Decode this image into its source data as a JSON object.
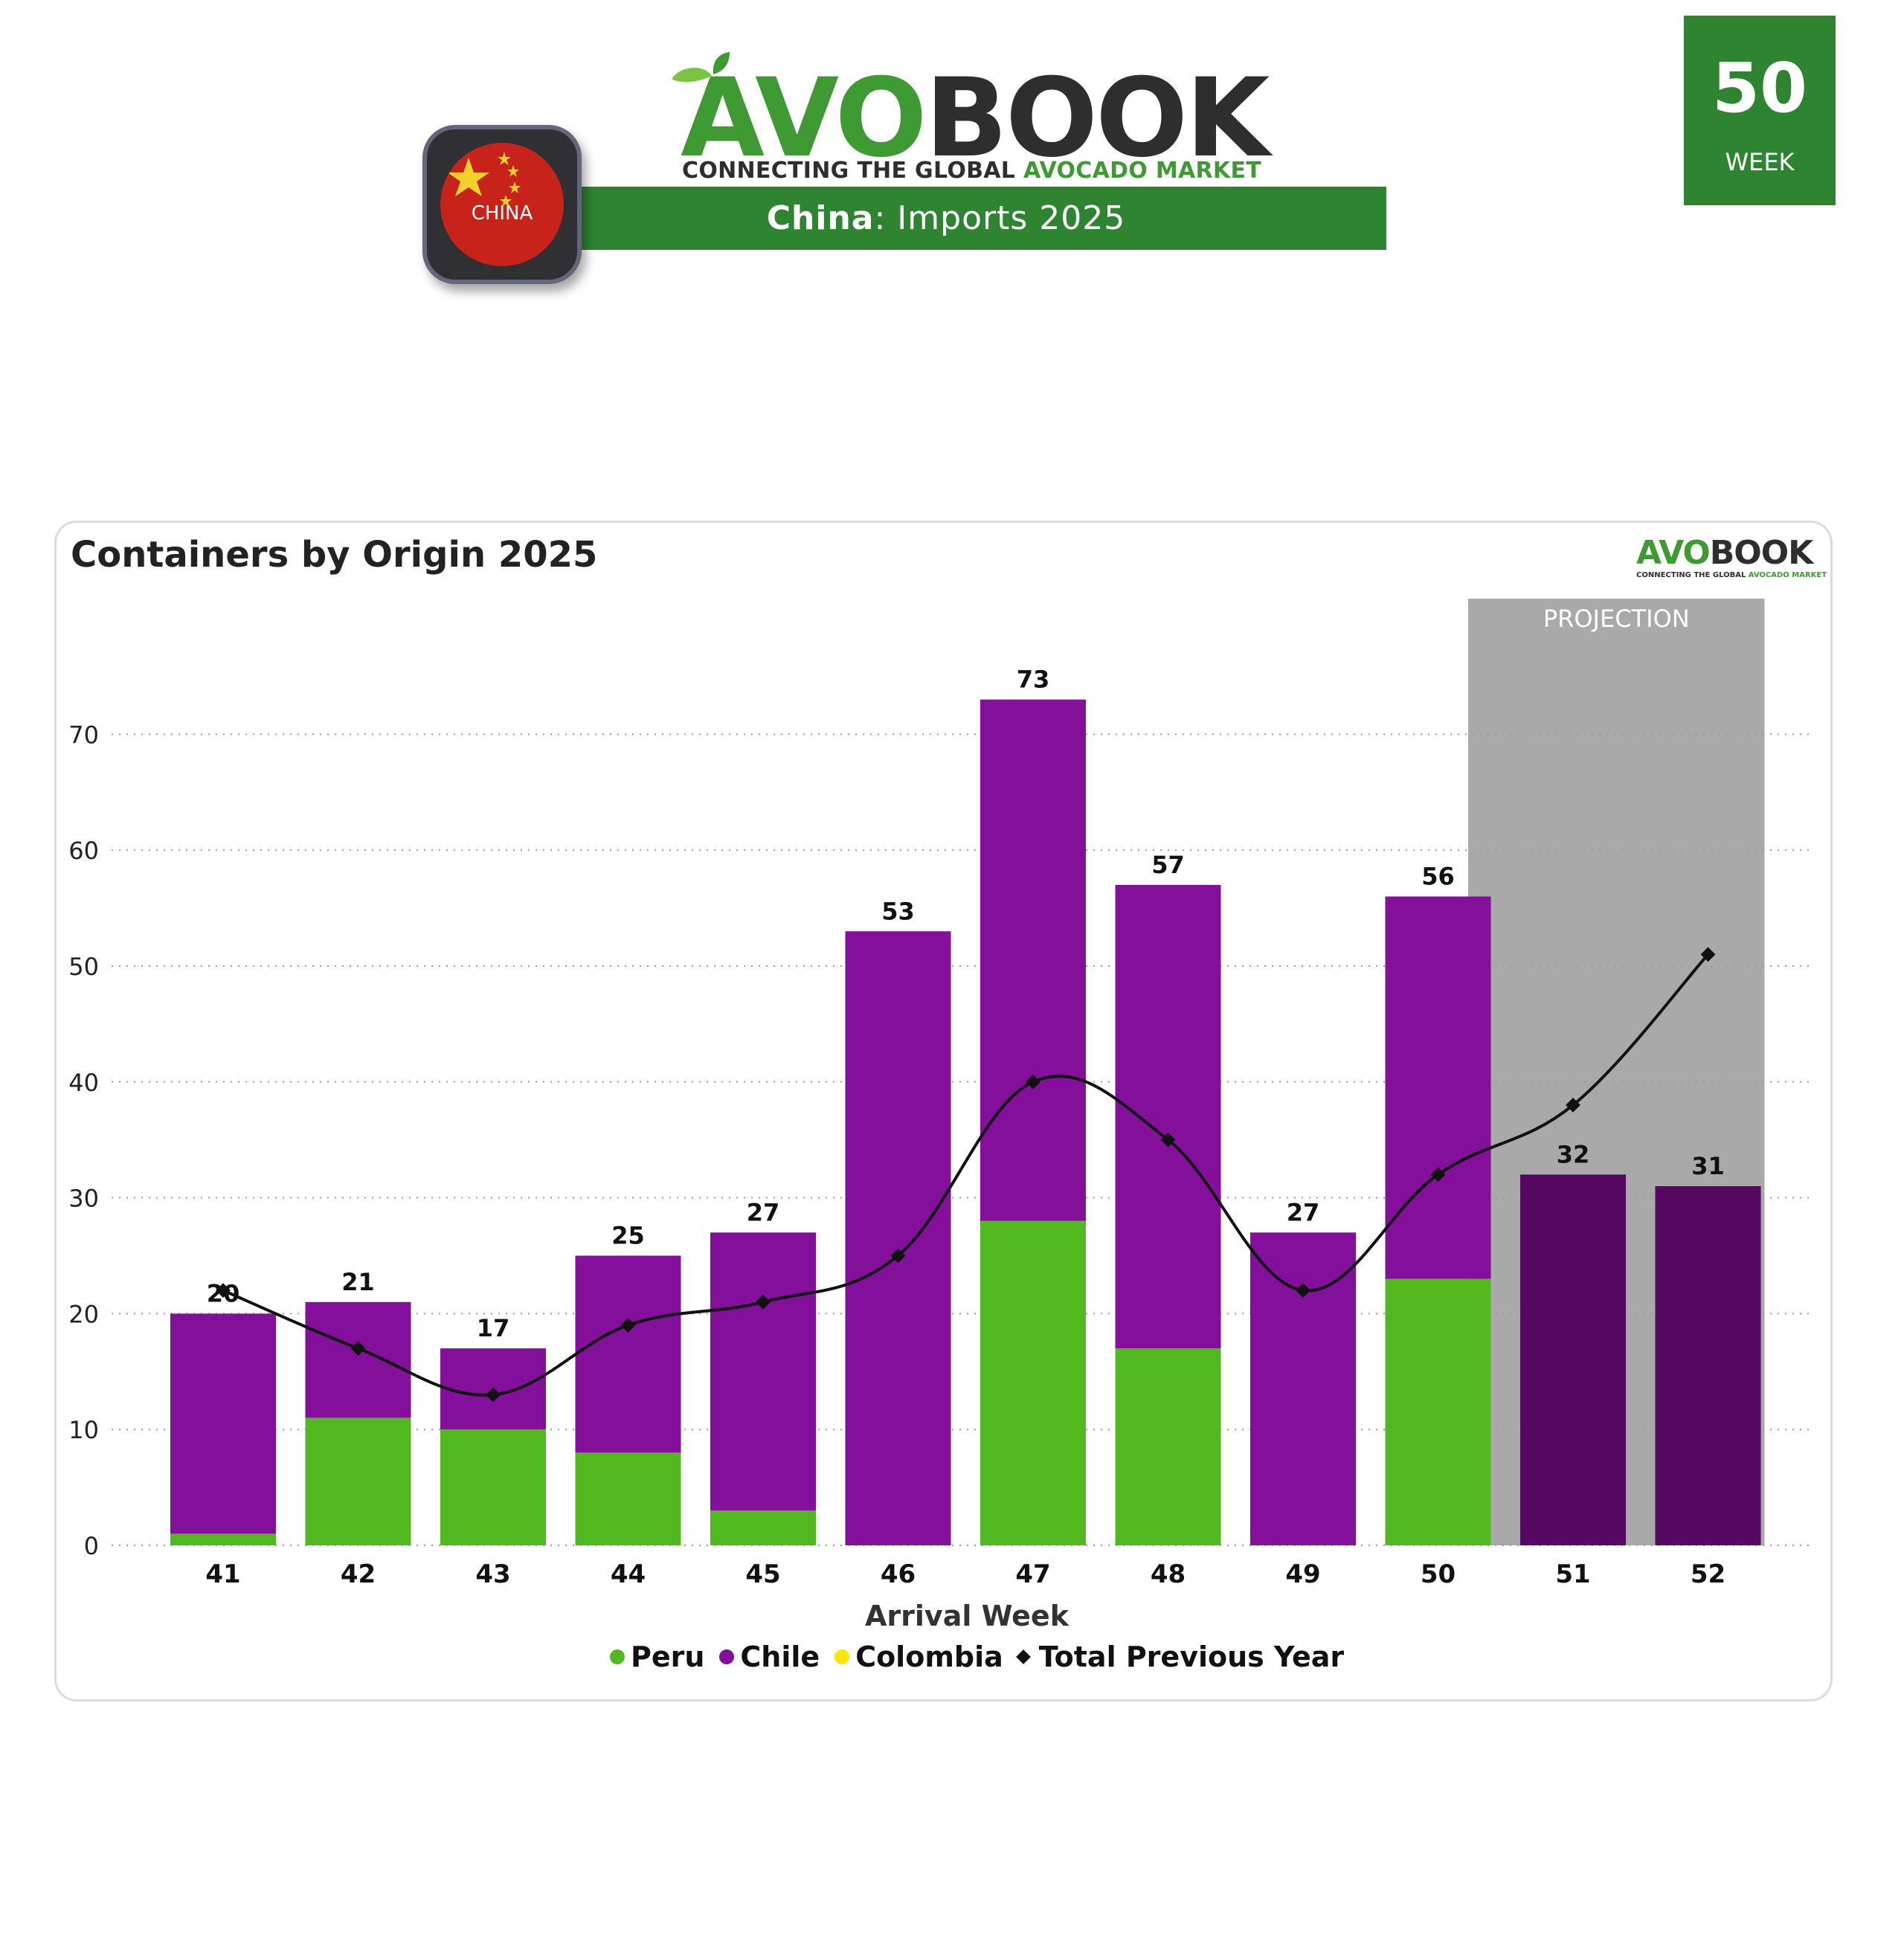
{
  "brand": {
    "name_part1": "AVO",
    "name_part2": "BOOK",
    "tagline_part1": "CONNECTING THE GLOBAL ",
    "tagline_part2": "AVOCADO MARKET",
    "green": "#3f9a34",
    "dark": "#2e2e2e"
  },
  "header": {
    "country": "China",
    "title_rest": ": Imports 2025",
    "flag_label": "CHINA",
    "week_number": "50",
    "week_label": "WEEK"
  },
  "colors": {
    "peru": "#52b81f",
    "chile": "#830f9b",
    "chile_projection": "#550862",
    "colombia": "#ffe600",
    "previous_year": "#111111",
    "projection_band": "#a9a9a9"
  },
  "chart_data": {
    "type": "bar",
    "title": "Containers by Origin 2025",
    "xlabel": "Arrival Week",
    "ylabel": "",
    "ylim": [
      0,
      80
    ],
    "yticks": [
      0,
      10,
      20,
      30,
      40,
      50,
      60,
      70
    ],
    "grid": true,
    "stacked": true,
    "categories": [
      "41",
      "42",
      "43",
      "44",
      "45",
      "46",
      "47",
      "48",
      "49",
      "50",
      "51",
      "52"
    ],
    "series": [
      {
        "name": "Peru",
        "values": [
          1,
          11,
          10,
          8,
          3,
          0,
          28,
          17,
          0,
          23,
          0,
          0
        ]
      },
      {
        "name": "Chile",
        "values": [
          19,
          10,
          7,
          17,
          24,
          53,
          45,
          40,
          27,
          33,
          32,
          31
        ]
      },
      {
        "name": "Colombia",
        "values": [
          0,
          0,
          0,
          0,
          0,
          0,
          0,
          0,
          0,
          0,
          0,
          0
        ]
      }
    ],
    "totals": [
      20,
      21,
      17,
      25,
      27,
      53,
      73,
      57,
      27,
      56,
      32,
      31
    ],
    "line_series": {
      "name": "Total Previous Year",
      "values": [
        22,
        17,
        13,
        19,
        21,
        25,
        40,
        35,
        22,
        32,
        38,
        51
      ]
    },
    "projection": {
      "label": "PROJECTION",
      "categories": [
        "51",
        "52"
      ]
    },
    "legend": [
      "Peru",
      "Chile",
      "Colombia",
      "Total Previous Year"
    ],
    "legend_position": "bottom-center"
  }
}
